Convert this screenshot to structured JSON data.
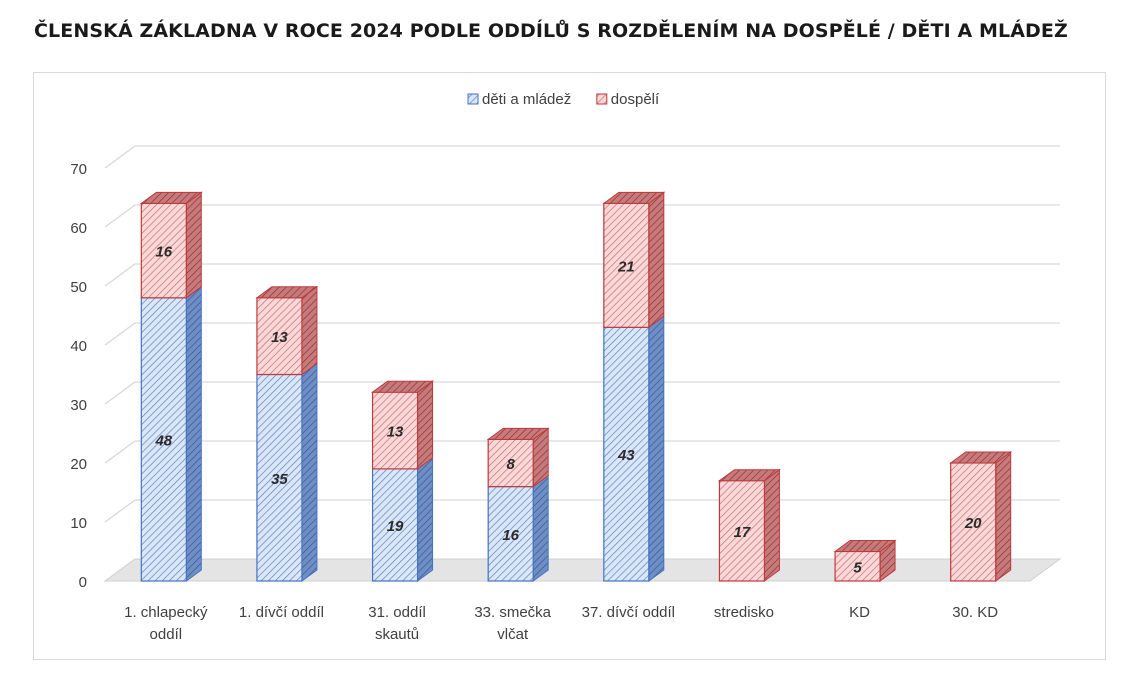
{
  "page": {
    "title": "ČLENSKÁ ZÁKLADNA V ROCE 2024 PODLE ODDÍLŮ S ROZDĚLENÍM NA DOSPĚLÉ / DĚTI A MLÁDEŽ"
  },
  "chart_data": {
    "type": "bar",
    "stacked": true,
    "style": "3d-column",
    "title": "ČLENSKÁ ZÁKLADNA V ROCE 2024 PODLE ODDÍLŮ S ROZDĚLENÍM NA DOSPĚLÉ / DĚTI A MLÁDEŽ",
    "categories": [
      [
        "1. chlapecký",
        "oddíl"
      ],
      [
        "1. dívčí oddíl"
      ],
      [
        "31. oddíl",
        "skautů"
      ],
      [
        "33. smečka",
        "vlčat"
      ],
      [
        "37. dívčí oddíl"
      ],
      [
        "stredisko"
      ],
      [
        "KD"
      ],
      [
        "30. KD"
      ]
    ],
    "series": [
      {
        "name": "děti a mládež",
        "values": [
          48,
          35,
          19,
          16,
          43,
          0,
          0,
          0
        ],
        "color": "#4472c4",
        "fill": "#c9d9f1"
      },
      {
        "name": "dospělí",
        "values": [
          16,
          13,
          13,
          8,
          21,
          17,
          5,
          20
        ],
        "color": "#c0393b",
        "fill": "#f3c7c7"
      }
    ],
    "ylim": [
      0,
      70
    ],
    "yticks": [
      0,
      10,
      20,
      30,
      40,
      50,
      60,
      70
    ],
    "grid": true,
    "legend": "top-center",
    "data_labels": true
  }
}
